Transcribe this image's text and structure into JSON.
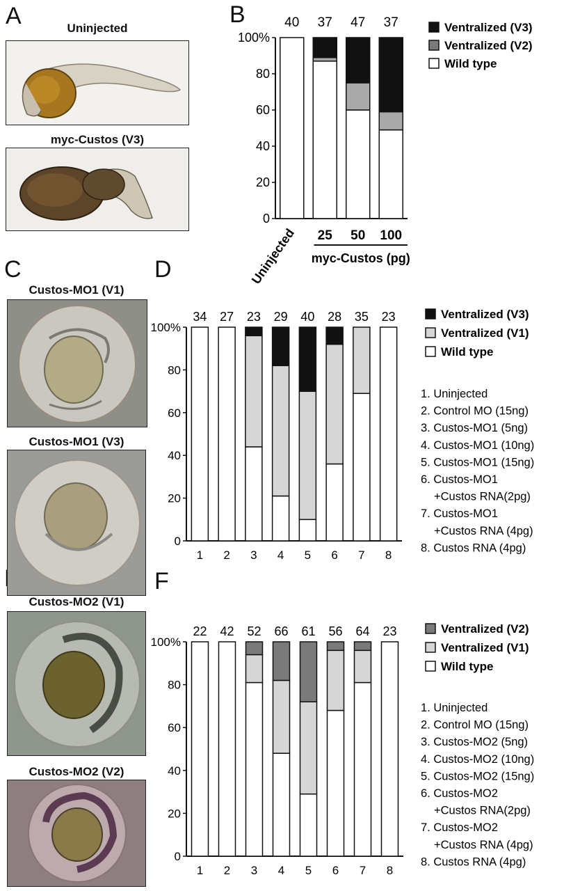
{
  "panels": {
    "A": {
      "label": "A",
      "images": [
        {
          "title": "Uninjected"
        },
        {
          "title": "myc-Custos (V3)"
        }
      ]
    },
    "B": {
      "label": "B"
    },
    "C": {
      "label": "C",
      "images": [
        {
          "title": "Custos-MO1 (V1)"
        },
        {
          "title": "Custos-MO1 (V3)"
        }
      ]
    },
    "D": {
      "label": "D"
    },
    "E": {
      "label": "E",
      "images": [
        {
          "title": "Custos-MO2 (V1)"
        },
        {
          "title": "Custos-MO2 (V2)"
        }
      ]
    },
    "F": {
      "label": "F"
    }
  },
  "colors": {
    "v3": "#111111",
    "v2": "#7a7a7a",
    "v2_B": "#a9a9a9",
    "v1": "#d6d6d6",
    "wild": "#ffffff"
  },
  "chart_data": [
    {
      "panel": "B",
      "type": "bar",
      "stacked": true,
      "categories": [
        "Uninjected",
        "25",
        "50",
        "100"
      ],
      "group_label": "myc-Custos (pg)",
      "n_labels": [
        "40",
        "37",
        "47",
        "37"
      ],
      "ylim": [
        0,
        100
      ],
      "yticks": [
        "0",
        "20",
        "40",
        "60",
        "80",
        "100%"
      ],
      "legend_position": "right",
      "series": [
        {
          "name": "Wild type",
          "values": [
            100,
            87,
            60,
            49
          ],
          "color_key": "wild"
        },
        {
          "name": "Ventralized (V2)",
          "values": [
            0,
            2,
            15,
            10
          ],
          "color_key": "v2_B"
        },
        {
          "name": "Ventralized (V3)",
          "values": [
            0,
            11,
            25,
            41
          ],
          "color_key": "v3"
        }
      ],
      "legend": [
        {
          "name": "Ventralized (V3)",
          "color_key": "v3"
        },
        {
          "name": "Ventralized (V2)",
          "color_key": "v2"
        },
        {
          "name": "Wild type",
          "color_key": "wild"
        }
      ]
    },
    {
      "panel": "D",
      "type": "bar",
      "stacked": true,
      "categories": [
        "1",
        "2",
        "3",
        "4",
        "5",
        "6",
        "7",
        "8"
      ],
      "n_labels": [
        "34",
        "27",
        "23",
        "29",
        "40",
        "28",
        "35",
        "23"
      ],
      "ylim": [
        0,
        100
      ],
      "yticks": [
        "0",
        "20",
        "40",
        "60",
        "80",
        "100%"
      ],
      "legend_position": "right",
      "series": [
        {
          "name": "Wild type",
          "values": [
            100,
            100,
            44,
            21,
            10,
            36,
            69,
            100
          ],
          "color_key": "wild"
        },
        {
          "name": "Ventralized (V1)",
          "values": [
            0,
            0,
            52,
            61,
            60,
            56,
            31,
            0
          ],
          "color_key": "v1"
        },
        {
          "name": "Ventralized (V3)",
          "values": [
            0,
            0,
            4,
            18,
            30,
            8,
            0,
            0
          ],
          "color_key": "v3"
        }
      ],
      "legend": [
        {
          "name": "Ventralized (V3)",
          "color_key": "v3"
        },
        {
          "name": "Ventralized (V1)",
          "color_key": "v1"
        },
        {
          "name": "Wild type",
          "color_key": "wild"
        }
      ],
      "key": [
        "1. Uninjected",
        "2. Control MO (15ng)",
        "3. Custos-MO1 (5ng)",
        "4. Custos-MO1 (10ng)",
        "5. Custos-MO1 (15ng)",
        "6. Custos-MO1",
        "+Custos RNA(2pg)",
        "7. Custos-MO1",
        "+Custos RNA (4pg)",
        "8. Custos RNA (4pg)"
      ]
    },
    {
      "panel": "F",
      "type": "bar",
      "stacked": true,
      "categories": [
        "1",
        "2",
        "3",
        "4",
        "5",
        "6",
        "7",
        "8"
      ],
      "n_labels": [
        "22",
        "42",
        "52",
        "66",
        "61",
        "56",
        "64",
        "23"
      ],
      "ylim": [
        0,
        100
      ],
      "yticks": [
        "0",
        "20",
        "40",
        "60",
        "80",
        "100%"
      ],
      "legend_position": "right",
      "series": [
        {
          "name": "Wild type",
          "values": [
            100,
            100,
            81,
            48,
            29,
            68,
            81,
            100
          ],
          "color_key": "wild"
        },
        {
          "name": "Ventralized (V1)",
          "values": [
            0,
            0,
            13,
            34,
            43,
            28,
            15,
            0
          ],
          "color_key": "v1"
        },
        {
          "name": "Ventralized (V2)",
          "values": [
            0,
            0,
            6,
            18,
            28,
            4,
            4,
            0
          ],
          "color_key": "v2"
        }
      ],
      "legend": [
        {
          "name": "Ventralized (V2)",
          "color_key": "v2"
        },
        {
          "name": "Ventralized (V1)",
          "color_key": "v1"
        },
        {
          "name": "Wild type",
          "color_key": "wild"
        }
      ],
      "key": [
        "1. Uninjected",
        "2. Control MO (15ng)",
        "3. Custos-MO2 (5ng)",
        "4. Custos-MO2 (10ng)",
        "5. Custos-MO2 (15ng)",
        "6. Custos-MO2",
        "+Custos RNA(2pg)",
        "7. Custos-MO2",
        "+Custos RNA (4pg)",
        "8. Custos RNA (4pg)"
      ]
    }
  ]
}
